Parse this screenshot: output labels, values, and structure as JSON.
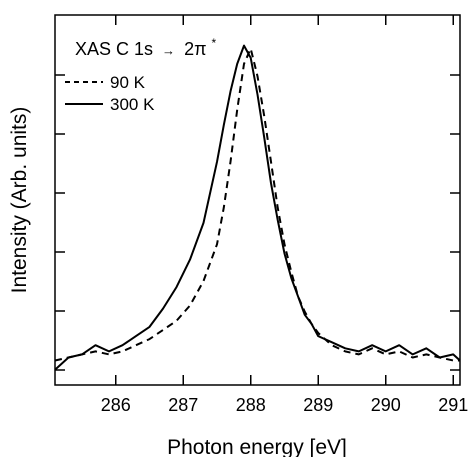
{
  "chart_data": {
    "type": "line",
    "title": "",
    "xlabel": "Photon energy [eV]",
    "ylabel": "Intensity (Arb. units)",
    "xlim": [
      285.1,
      291.1
    ],
    "ylim": [
      -0.08,
      1.13
    ],
    "x_ticks": [
      286,
      287,
      288,
      289,
      290,
      291
    ],
    "x_tick_labels": [
      "286",
      "287",
      "288",
      "289",
      "290",
      "291"
    ],
    "y_tick_labels_shown": false,
    "grid": false,
    "legend": {
      "title_prefix": "XAS C 1s",
      "arrow": "→",
      "title_suffix": "2π",
      "superscript": "*",
      "placement": "top-left",
      "entries": [
        "90 K",
        "300 K"
      ]
    },
    "series": [
      {
        "name": "90 K",
        "style": "dashed",
        "color": "#000000",
        "x": [
          285.1,
          285.3,
          285.5,
          285.7,
          285.9,
          286.1,
          286.3,
          286.5,
          286.7,
          286.9,
          287.1,
          287.3,
          287.5,
          287.6,
          287.7,
          287.8,
          287.9,
          288.0,
          288.1,
          288.2,
          288.3,
          288.4,
          288.5,
          288.6,
          288.7,
          288.8,
          288.9,
          289.0,
          289.2,
          289.4,
          289.6,
          289.8,
          290.0,
          290.2,
          290.4,
          290.6,
          290.8,
          291.0,
          291.1
        ],
        "y": [
          0.0,
          0.01,
          0.02,
          0.03,
          0.02,
          0.03,
          0.05,
          0.07,
          0.1,
          0.13,
          0.18,
          0.26,
          0.38,
          0.5,
          0.65,
          0.82,
          0.97,
          1.02,
          0.93,
          0.8,
          0.65,
          0.5,
          0.38,
          0.29,
          0.21,
          0.16,
          0.12,
          0.09,
          0.05,
          0.03,
          0.02,
          0.04,
          0.02,
          0.03,
          0.01,
          0.02,
          0.01,
          0.0,
          0.0
        ]
      },
      {
        "name": "300 K",
        "style": "solid",
        "color": "#000000",
        "x": [
          285.1,
          285.3,
          285.5,
          285.7,
          285.9,
          286.1,
          286.3,
          286.5,
          286.7,
          286.9,
          287.1,
          287.3,
          287.5,
          287.6,
          287.7,
          287.8,
          287.9,
          288.0,
          288.1,
          288.2,
          288.3,
          288.4,
          288.5,
          288.6,
          288.7,
          288.8,
          288.9,
          289.0,
          289.2,
          289.4,
          289.6,
          289.8,
          290.0,
          290.2,
          290.4,
          290.6,
          290.8,
          291.0,
          291.1
        ],
        "y": [
          -0.03,
          0.01,
          0.02,
          0.05,
          0.03,
          0.05,
          0.08,
          0.11,
          0.17,
          0.24,
          0.33,
          0.45,
          0.65,
          0.77,
          0.88,
          0.97,
          1.03,
          0.99,
          0.87,
          0.73,
          0.58,
          0.46,
          0.35,
          0.27,
          0.21,
          0.15,
          0.12,
          0.08,
          0.06,
          0.04,
          0.03,
          0.05,
          0.03,
          0.05,
          0.02,
          0.04,
          0.01,
          0.02,
          0.0
        ]
      }
    ]
  }
}
